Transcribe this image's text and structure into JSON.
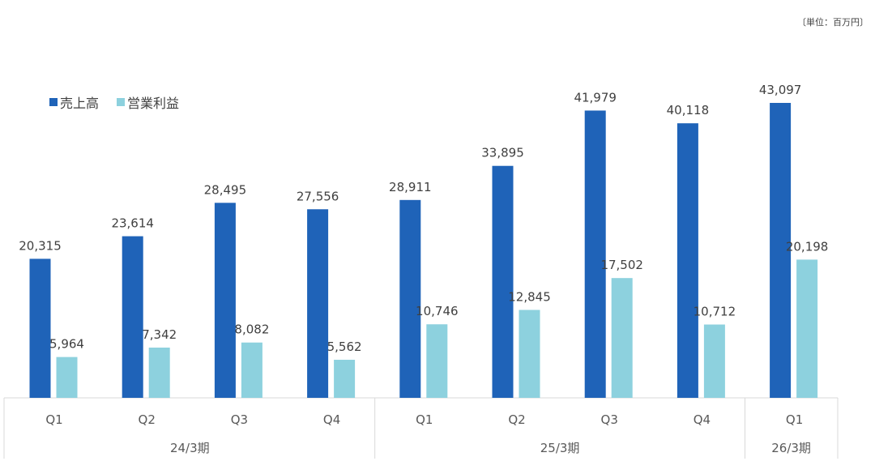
{
  "chart_data": {
    "type": "bar",
    "title": "",
    "unit_label": "〔単位：百万円〕",
    "xlabel": "",
    "ylabel": "",
    "ylim": [
      0,
      43097
    ],
    "grid": false,
    "legend_position": "top-left",
    "categories": [
      "Q1",
      "Q2",
      "Q3",
      "Q4",
      "Q1",
      "Q2",
      "Q3",
      "Q4",
      "Q1"
    ],
    "groups": [
      {
        "label": "24/3期",
        "count": 4
      },
      {
        "label": "25/3期",
        "count": 4
      },
      {
        "label": "26/3期",
        "count": 1
      }
    ],
    "series": [
      {
        "name": "売上高",
        "color": "#1F63B8",
        "values": [
          20315,
          23614,
          28495,
          27556,
          28911,
          33895,
          41979,
          40118,
          43097
        ],
        "labels": [
          "20,315",
          "23,614",
          "28,495",
          "27,556",
          "28,911",
          "33,895",
          "41,979",
          "40,118",
          "43,097"
        ]
      },
      {
        "name": "営業利益",
        "color": "#8DD1DE",
        "values": [
          5964,
          7342,
          8082,
          5562,
          10746,
          12845,
          17502,
          10712,
          20198
        ],
        "labels": [
          "5,964",
          "7,342",
          "8,082",
          "5,562",
          "10,746",
          "12,845",
          "17,502",
          "10,712",
          "20,198"
        ]
      }
    ]
  }
}
